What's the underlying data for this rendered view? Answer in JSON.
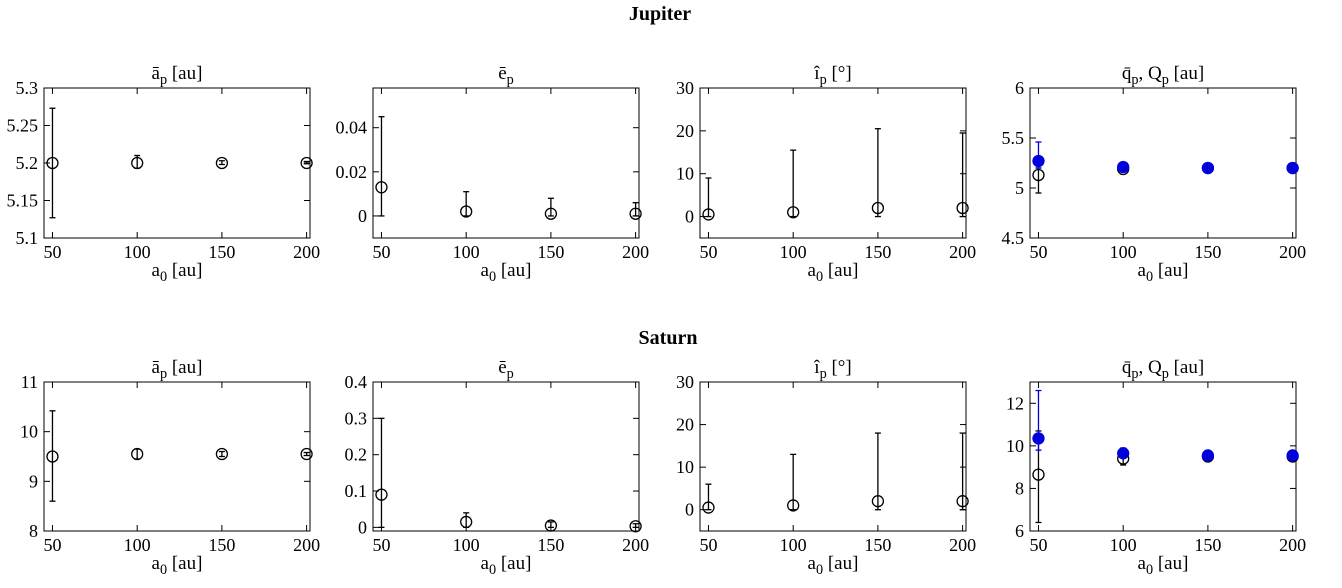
{
  "figure": {
    "rows": [
      {
        "title": "Jupiter"
      },
      {
        "title": "Saturn"
      }
    ]
  },
  "colors": {
    "axis": "#000000",
    "open_marker": "#000000",
    "filled_marker": "#0000dd"
  },
  "chart_data": [
    {
      "type": "scatter",
      "row": 0,
      "col": 0,
      "title": "ā",
      "title_sub": "p",
      "title_tail": " [au]",
      "xlabel": "a",
      "xlabel_sub": "0",
      "xlabel_tail": " [au]",
      "xlim": [
        45,
        202
      ],
      "ylim": [
        5.1,
        5.3
      ],
      "xticks": [
        "50",
        "100",
        "150",
        "200"
      ],
      "yticks": [
        "5.1",
        "5.15",
        "5.2",
        "5.25",
        "5.3"
      ],
      "series": [
        {
          "marker": "open",
          "x": [
            50,
            100,
            150,
            200
          ],
          "y": [
            5.2,
            5.2,
            5.2,
            5.2
          ],
          "ylow": [
            5.127,
            5.193,
            5.198,
            5.199
          ],
          "yhigh": [
            5.273,
            5.21,
            5.203,
            5.202
          ]
        }
      ]
    },
    {
      "type": "scatter",
      "row": 0,
      "col": 1,
      "title": "ē",
      "title_sub": "p",
      "title_tail": "",
      "xlabel": "a",
      "xlabel_sub": "0",
      "xlabel_tail": " [au]",
      "xlim": [
        45,
        202
      ],
      "ylim": [
        -0.01,
        0.058
      ],
      "xticks": [
        "50",
        "100",
        "150",
        "200"
      ],
      "yticks": [
        "0",
        "0.02",
        "0.04"
      ],
      "series": [
        {
          "marker": "open",
          "x": [
            50,
            100,
            150,
            200
          ],
          "y": [
            0.013,
            0.002,
            0.001,
            0.001
          ],
          "ylow": [
            0,
            0,
            0,
            0
          ],
          "yhigh": [
            0.045,
            0.011,
            0.008,
            0.006
          ]
        }
      ]
    },
    {
      "type": "scatter",
      "row": 0,
      "col": 2,
      "title": "î",
      "title_sub": "p",
      "title_tail": " [°]",
      "xlabel": "a",
      "xlabel_sub": "0",
      "xlabel_tail": " [au]",
      "xlim": [
        45,
        202
      ],
      "ylim": [
        -5,
        30
      ],
      "xticks": [
        "50",
        "100",
        "150",
        "200"
      ],
      "yticks": [
        "0",
        "10",
        "20",
        "30"
      ],
      "series": [
        {
          "marker": "open",
          "x": [
            50,
            100,
            150,
            200
          ],
          "y": [
            0.5,
            1,
            2,
            2
          ],
          "ylow": [
            0,
            0,
            0,
            0
          ],
          "yhigh": [
            9,
            15.5,
            20.5,
            19.5
          ]
        }
      ]
    },
    {
      "type": "scatter",
      "row": 0,
      "col": 3,
      "title": "q̄",
      "title_sub": "p",
      "title_tail": ", Q",
      "title_sub2": "p",
      "title_tail2": " [au]",
      "xlabel": "a",
      "xlabel_sub": "0",
      "xlabel_tail": " [au]",
      "xlim": [
        45,
        202
      ],
      "ylim": [
        4.5,
        6
      ],
      "xticks": [
        "50",
        "100",
        "150",
        "200"
      ],
      "yticks": [
        "4.5",
        "5",
        "5.5",
        "6"
      ],
      "series": [
        {
          "marker": "open",
          "x": [
            50,
            100,
            150,
            200
          ],
          "y": [
            5.13,
            5.19,
            5.2,
            5.2
          ],
          "ylow": [
            4.95,
            5.17,
            5.19,
            5.19
          ],
          "yhigh": [
            5.2,
            5.2,
            5.2,
            5.2
          ]
        },
        {
          "marker": "filled",
          "x": [
            50,
            100,
            150,
            200
          ],
          "y": [
            5.27,
            5.21,
            5.2,
            5.2
          ],
          "ylow": [
            5.2,
            5.2,
            5.2,
            5.2
          ],
          "yhigh": [
            5.46,
            5.23,
            5.21,
            5.2
          ]
        }
      ]
    },
    {
      "type": "scatter",
      "row": 1,
      "col": 0,
      "title": "ā",
      "title_sub": "p",
      "title_tail": " [au]",
      "xlabel": "a",
      "xlabel_sub": "0",
      "xlabel_tail": " [au]",
      "xlim": [
        45,
        202
      ],
      "ylim": [
        8,
        11
      ],
      "xticks": [
        "50",
        "100",
        "150",
        "200"
      ],
      "yticks": [
        "8",
        "9",
        "10",
        "11"
      ],
      "series": [
        {
          "marker": "open",
          "x": [
            50,
            100,
            150,
            200
          ],
          "y": [
            9.5,
            9.55,
            9.55,
            9.55
          ],
          "ylow": [
            8.6,
            9.45,
            9.5,
            9.52
          ],
          "yhigh": [
            10.42,
            9.65,
            9.6,
            9.58
          ]
        }
      ]
    },
    {
      "type": "scatter",
      "row": 1,
      "col": 1,
      "title": "ē",
      "title_sub": "p",
      "title_tail": "",
      "xlabel": "a",
      "xlabel_sub": "0",
      "xlabel_tail": " [au]",
      "xlim": [
        45,
        202
      ],
      "ylim": [
        -0.01,
        0.4
      ],
      "xticks": [
        "50",
        "100",
        "150",
        "200"
      ],
      "yticks": [
        "0",
        "0.1",
        "0.2",
        "0.3",
        "0.4"
      ],
      "series": [
        {
          "marker": "open",
          "x": [
            50,
            100,
            150,
            200
          ],
          "y": [
            0.09,
            0.015,
            0.005,
            0.003
          ],
          "ylow": [
            0,
            0,
            0,
            0
          ],
          "yhigh": [
            0.3,
            0.04,
            0.015,
            0.01
          ]
        }
      ]
    },
    {
      "type": "scatter",
      "row": 1,
      "col": 2,
      "title": "î",
      "title_sub": "p",
      "title_tail": " [°]",
      "xlabel": "a",
      "xlabel_sub": "0",
      "xlabel_tail": " [au]",
      "xlim": [
        45,
        202
      ],
      "ylim": [
        -5,
        30
      ],
      "xticks": [
        "50",
        "100",
        "150",
        "200"
      ],
      "yticks": [
        "0",
        "10",
        "20",
        "30"
      ],
      "series": [
        {
          "marker": "open",
          "x": [
            50,
            100,
            150,
            200
          ],
          "y": [
            0.5,
            1,
            2,
            2
          ],
          "ylow": [
            0,
            0,
            0,
            0
          ],
          "yhigh": [
            6,
            13,
            18,
            18
          ]
        }
      ]
    },
    {
      "type": "scatter",
      "row": 1,
      "col": 3,
      "title": "q̄",
      "title_sub": "p",
      "title_tail": ", Q",
      "title_sub2": "p",
      "title_tail2": " [au]",
      "xlabel": "a",
      "xlabel_sub": "0",
      "xlabel_tail": " [au]",
      "xlim": [
        45,
        202
      ],
      "ylim": [
        6,
        13
      ],
      "xticks": [
        "50",
        "100",
        "150",
        "200"
      ],
      "yticks": [
        "6",
        "8",
        "10",
        "12"
      ],
      "series": [
        {
          "marker": "open",
          "x": [
            50,
            100,
            150,
            200
          ],
          "y": [
            8.65,
            9.4,
            9.5,
            9.5
          ],
          "ylow": [
            6.4,
            9.1,
            9.4,
            9.45
          ],
          "yhigh": [
            10.7,
            9.65,
            9.6,
            9.55
          ]
        },
        {
          "marker": "filled",
          "x": [
            50,
            100,
            150,
            200
          ],
          "y": [
            10.35,
            9.65,
            9.55,
            9.55
          ],
          "ylow": [
            9.8,
            9.45,
            9.5,
            9.5
          ],
          "yhigh": [
            12.6,
            9.9,
            9.6,
            9.6
          ]
        }
      ]
    }
  ]
}
